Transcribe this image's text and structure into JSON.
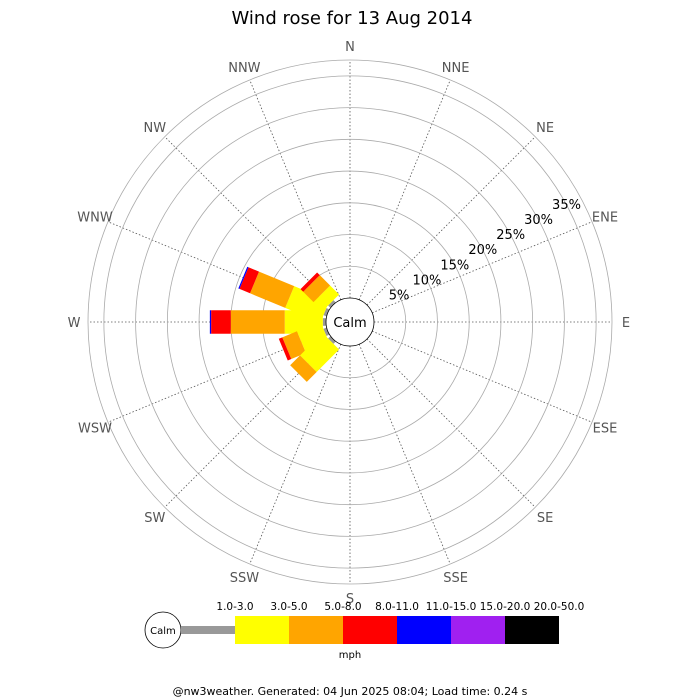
{
  "chart_data": {
    "type": "wind-rose",
    "title": "Wind rose for 13 Aug 2014",
    "directions": [
      "N",
      "NNE",
      "NE",
      "ENE",
      "E",
      "ESE",
      "SE",
      "SSE",
      "S",
      "SSW",
      "SW",
      "WSW",
      "W",
      "WNW",
      "NW",
      "NNW"
    ],
    "radial_ticks": [
      "5%",
      "10%",
      "15%",
      "20%",
      "25%",
      "30%",
      "35%"
    ],
    "radial_max_percent": 37.5,
    "calm_label": "Calm",
    "unit_label": "mph",
    "speed_bins": [
      {
        "label": "1.0-3.0",
        "color": "#999999"
      },
      {
        "label": "3.0-5.0",
        "color": "#ffff00"
      },
      {
        "label": "5.0-8.0",
        "color": "#ffa500"
      },
      {
        "label": "8.0-11.0",
        "color": "#ff0000"
      },
      {
        "label": "11.0-15.0",
        "color": "#0000ff"
      },
      {
        "label": "15.0-20.0",
        "color": "#a020f0"
      },
      {
        "label": "20.0-50.0",
        "color": "#000000"
      }
    ],
    "series": [
      {
        "direction": "W",
        "segments": [
          0.5,
          6.0,
          8.5,
          3.1,
          0.2,
          0,
          0
        ]
      },
      {
        "direction": "WNW",
        "segments": [
          0.5,
          6.0,
          6.0,
          1.8,
          0.2,
          0,
          0
        ]
      },
      {
        "direction": "NW",
        "segments": [
          0.5,
          2.0,
          2.3,
          0.6,
          0,
          0,
          0
        ]
      },
      {
        "direction": "WSW",
        "segments": [
          0.5,
          4.0,
          2.5,
          0.6,
          0,
          0,
          0
        ]
      },
      {
        "direction": "SW",
        "segments": [
          0.5,
          5.0,
          2.2,
          0,
          0,
          0,
          0
        ]
      }
    ],
    "grid": true
  },
  "footer": "@nw3weather. Generated: 04 Jun 2025 08:04; Load time: 0.24 s"
}
